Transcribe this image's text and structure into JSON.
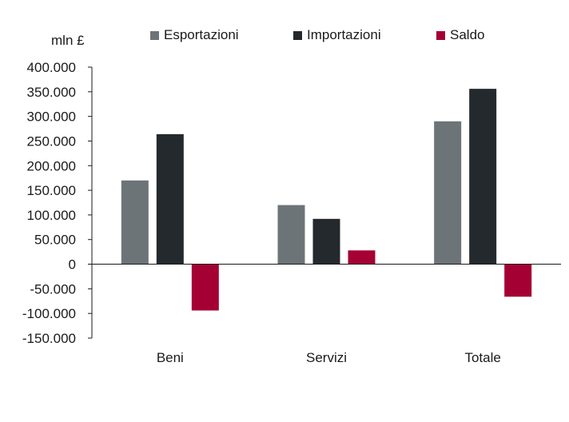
{
  "chart_data": {
    "type": "bar",
    "unit_label": "mln £",
    "categories": [
      "Beni",
      "Servizi",
      "Totale"
    ],
    "series": [
      {
        "name": "Esportazioni",
        "color": "#6d7478",
        "values": [
          170000,
          120000,
          290000
        ]
      },
      {
        "name": "Importazioni",
        "color": "#24292d",
        "values": [
          264000,
          92000,
          356000
        ]
      },
      {
        "name": "Saldo",
        "color": "#a50034",
        "values": [
          -94000,
          28000,
          -66000
        ]
      }
    ],
    "ylim": [
      -150000,
      400000
    ],
    "yticks": [
      "400.000",
      "350.000",
      "300.000",
      "250.000",
      "200.000",
      "150.000",
      "100.000",
      "50.000",
      "0",
      "-50.000",
      "-100.000",
      "-150.000"
    ],
    "legend_position": "top",
    "grid": false
  }
}
